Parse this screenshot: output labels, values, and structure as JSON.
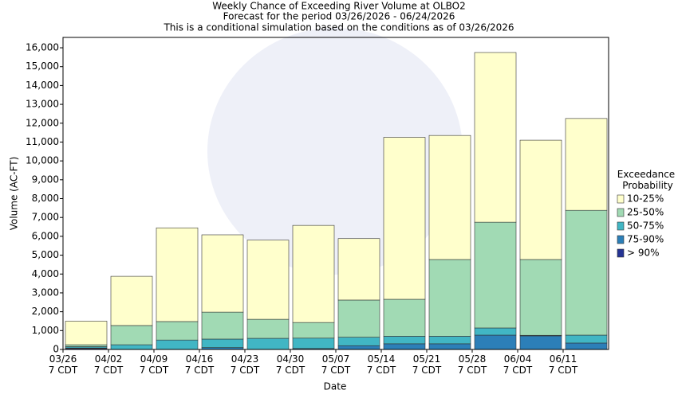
{
  "chart_data": {
    "type": "stacked_bar",
    "title": "Weekly Chance of Exceeding River Volume at OLBO2",
    "subtitle": "Forecast for the period 03/26/2026 - 06/24/2026",
    "subtitle2": "This is a conditional simulation based on the conditions as of 03/26/2026",
    "x_label": "Date",
    "y_label": "Volume (AC-FT)",
    "legend_title": "Exceedance Probability",
    "legend_position": "right",
    "categories": [
      "03/26 7 CDT",
      "04/02 7 CDT",
      "04/09 7 CDT",
      "04/16 7 CDT",
      "04/23 7 CDT",
      "04/30 7 CDT",
      "05/07 7 CDT",
      "05/14 7 CDT",
      "05/21 7 CDT",
      "05/28 7 CDT",
      "06/04 7 CDT",
      "06/11 7 CDT"
    ],
    "series": [
      {
        "name": "> 90%",
        "color": "#253494",
        "values": [
          50,
          0,
          0,
          0,
          0,
          0,
          0,
          0,
          0,
          0,
          0,
          0
        ]
      },
      {
        "name": "75-90%",
        "color": "#2c7fb8",
        "values": [
          30,
          0,
          0,
          100,
          0,
          50,
          200,
          300,
          300,
          760,
          720,
          340
        ]
      },
      {
        "name": "50-75%",
        "color": "#41b6c4",
        "values": [
          70,
          250,
          500,
          450,
          590,
          550,
          450,
          400,
          400,
          380,
          30,
          420
        ]
      },
      {
        "name": "25-50%",
        "color": "#a1dab4",
        "values": [
          100,
          1020,
          980,
          1430,
          1010,
          830,
          1970,
          1960,
          4070,
          5610,
          4020,
          6620
        ]
      },
      {
        "name": "10-25%",
        "color": "#ffffcc",
        "values": [
          1250,
          2610,
          4970,
          4100,
          4200,
          5150,
          3260,
          8590,
          6580,
          9000,
          6330,
          4870
        ]
      }
    ],
    "ylim": [
      0,
      16550
    ],
    "yticks": [
      0,
      {
        "value": 1000,
        "label": "1,000"
      },
      {
        "value": 2000,
        "label": "2,000"
      },
      {
        "value": 3000,
        "label": "3,000"
      },
      {
        "value": 4000,
        "label": "4,000"
      },
      {
        "value": 5000,
        "label": "5,000"
      },
      {
        "value": 6000,
        "label": "6,000"
      },
      {
        "value": 7000,
        "label": "7,000"
      },
      {
        "value": 8000,
        "label": "8,000"
      },
      {
        "value": 9000,
        "label": "9,000"
      },
      {
        "value": 10000,
        "label": "10,000"
      },
      {
        "value": 11000,
        "label": "11,000"
      },
      {
        "value": 12000,
        "label": "12,000"
      },
      {
        "value": 13000,
        "label": "13,000"
      },
      {
        "value": 14000,
        "label": "14,000"
      },
      {
        "value": 15000,
        "label": "15,000"
      },
      {
        "value": 16000,
        "label": "16,000"
      }
    ],
    "grid": false
  }
}
